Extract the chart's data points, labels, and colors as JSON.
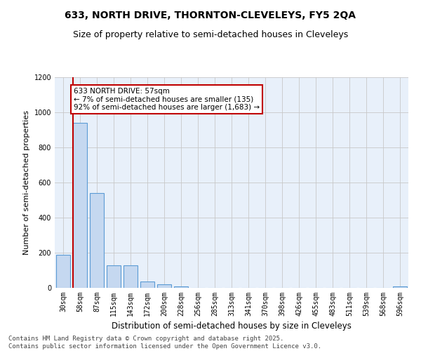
{
  "title": "633, NORTH DRIVE, THORNTON-CLEVELEYS, FY5 2QA",
  "subtitle": "Size of property relative to semi-detached houses in Cleveleys",
  "xlabel": "Distribution of semi-detached houses by size in Cleveleys",
  "ylabel": "Number of semi-detached properties",
  "categories": [
    "30sqm",
    "58sqm",
    "87sqm",
    "115sqm",
    "143sqm",
    "172sqm",
    "200sqm",
    "228sqm",
    "256sqm",
    "285sqm",
    "313sqm",
    "341sqm",
    "370sqm",
    "398sqm",
    "426sqm",
    "455sqm",
    "483sqm",
    "511sqm",
    "539sqm",
    "568sqm",
    "596sqm"
  ],
  "values": [
    190,
    940,
    540,
    130,
    130,
    35,
    20,
    10,
    0,
    0,
    0,
    0,
    0,
    0,
    0,
    0,
    0,
    0,
    0,
    0,
    10
  ],
  "bar_color": "#c5d8f0",
  "bar_edge_color": "#5b9bd5",
  "vline_color": "#c00000",
  "annotation_text": "633 NORTH DRIVE: 57sqm\n← 7% of semi-detached houses are smaller (135)\n92% of semi-detached houses are larger (1,683) →",
  "annotation_box_color": "#c00000",
  "ylim": [
    0,
    1200
  ],
  "yticks": [
    0,
    200,
    400,
    600,
    800,
    1000,
    1200
  ],
  "background_color": "#ffffff",
  "plot_bg_color": "#e8f0fa",
  "grid_color": "#c8c8c8",
  "footer_line1": "Contains HM Land Registry data © Crown copyright and database right 2025.",
  "footer_line2": "Contains public sector information licensed under the Open Government Licence v3.0.",
  "title_fontsize": 10,
  "subtitle_fontsize": 9,
  "xlabel_fontsize": 8.5,
  "ylabel_fontsize": 8,
  "tick_fontsize": 7,
  "annotation_fontsize": 7.5,
  "footer_fontsize": 6.5
}
